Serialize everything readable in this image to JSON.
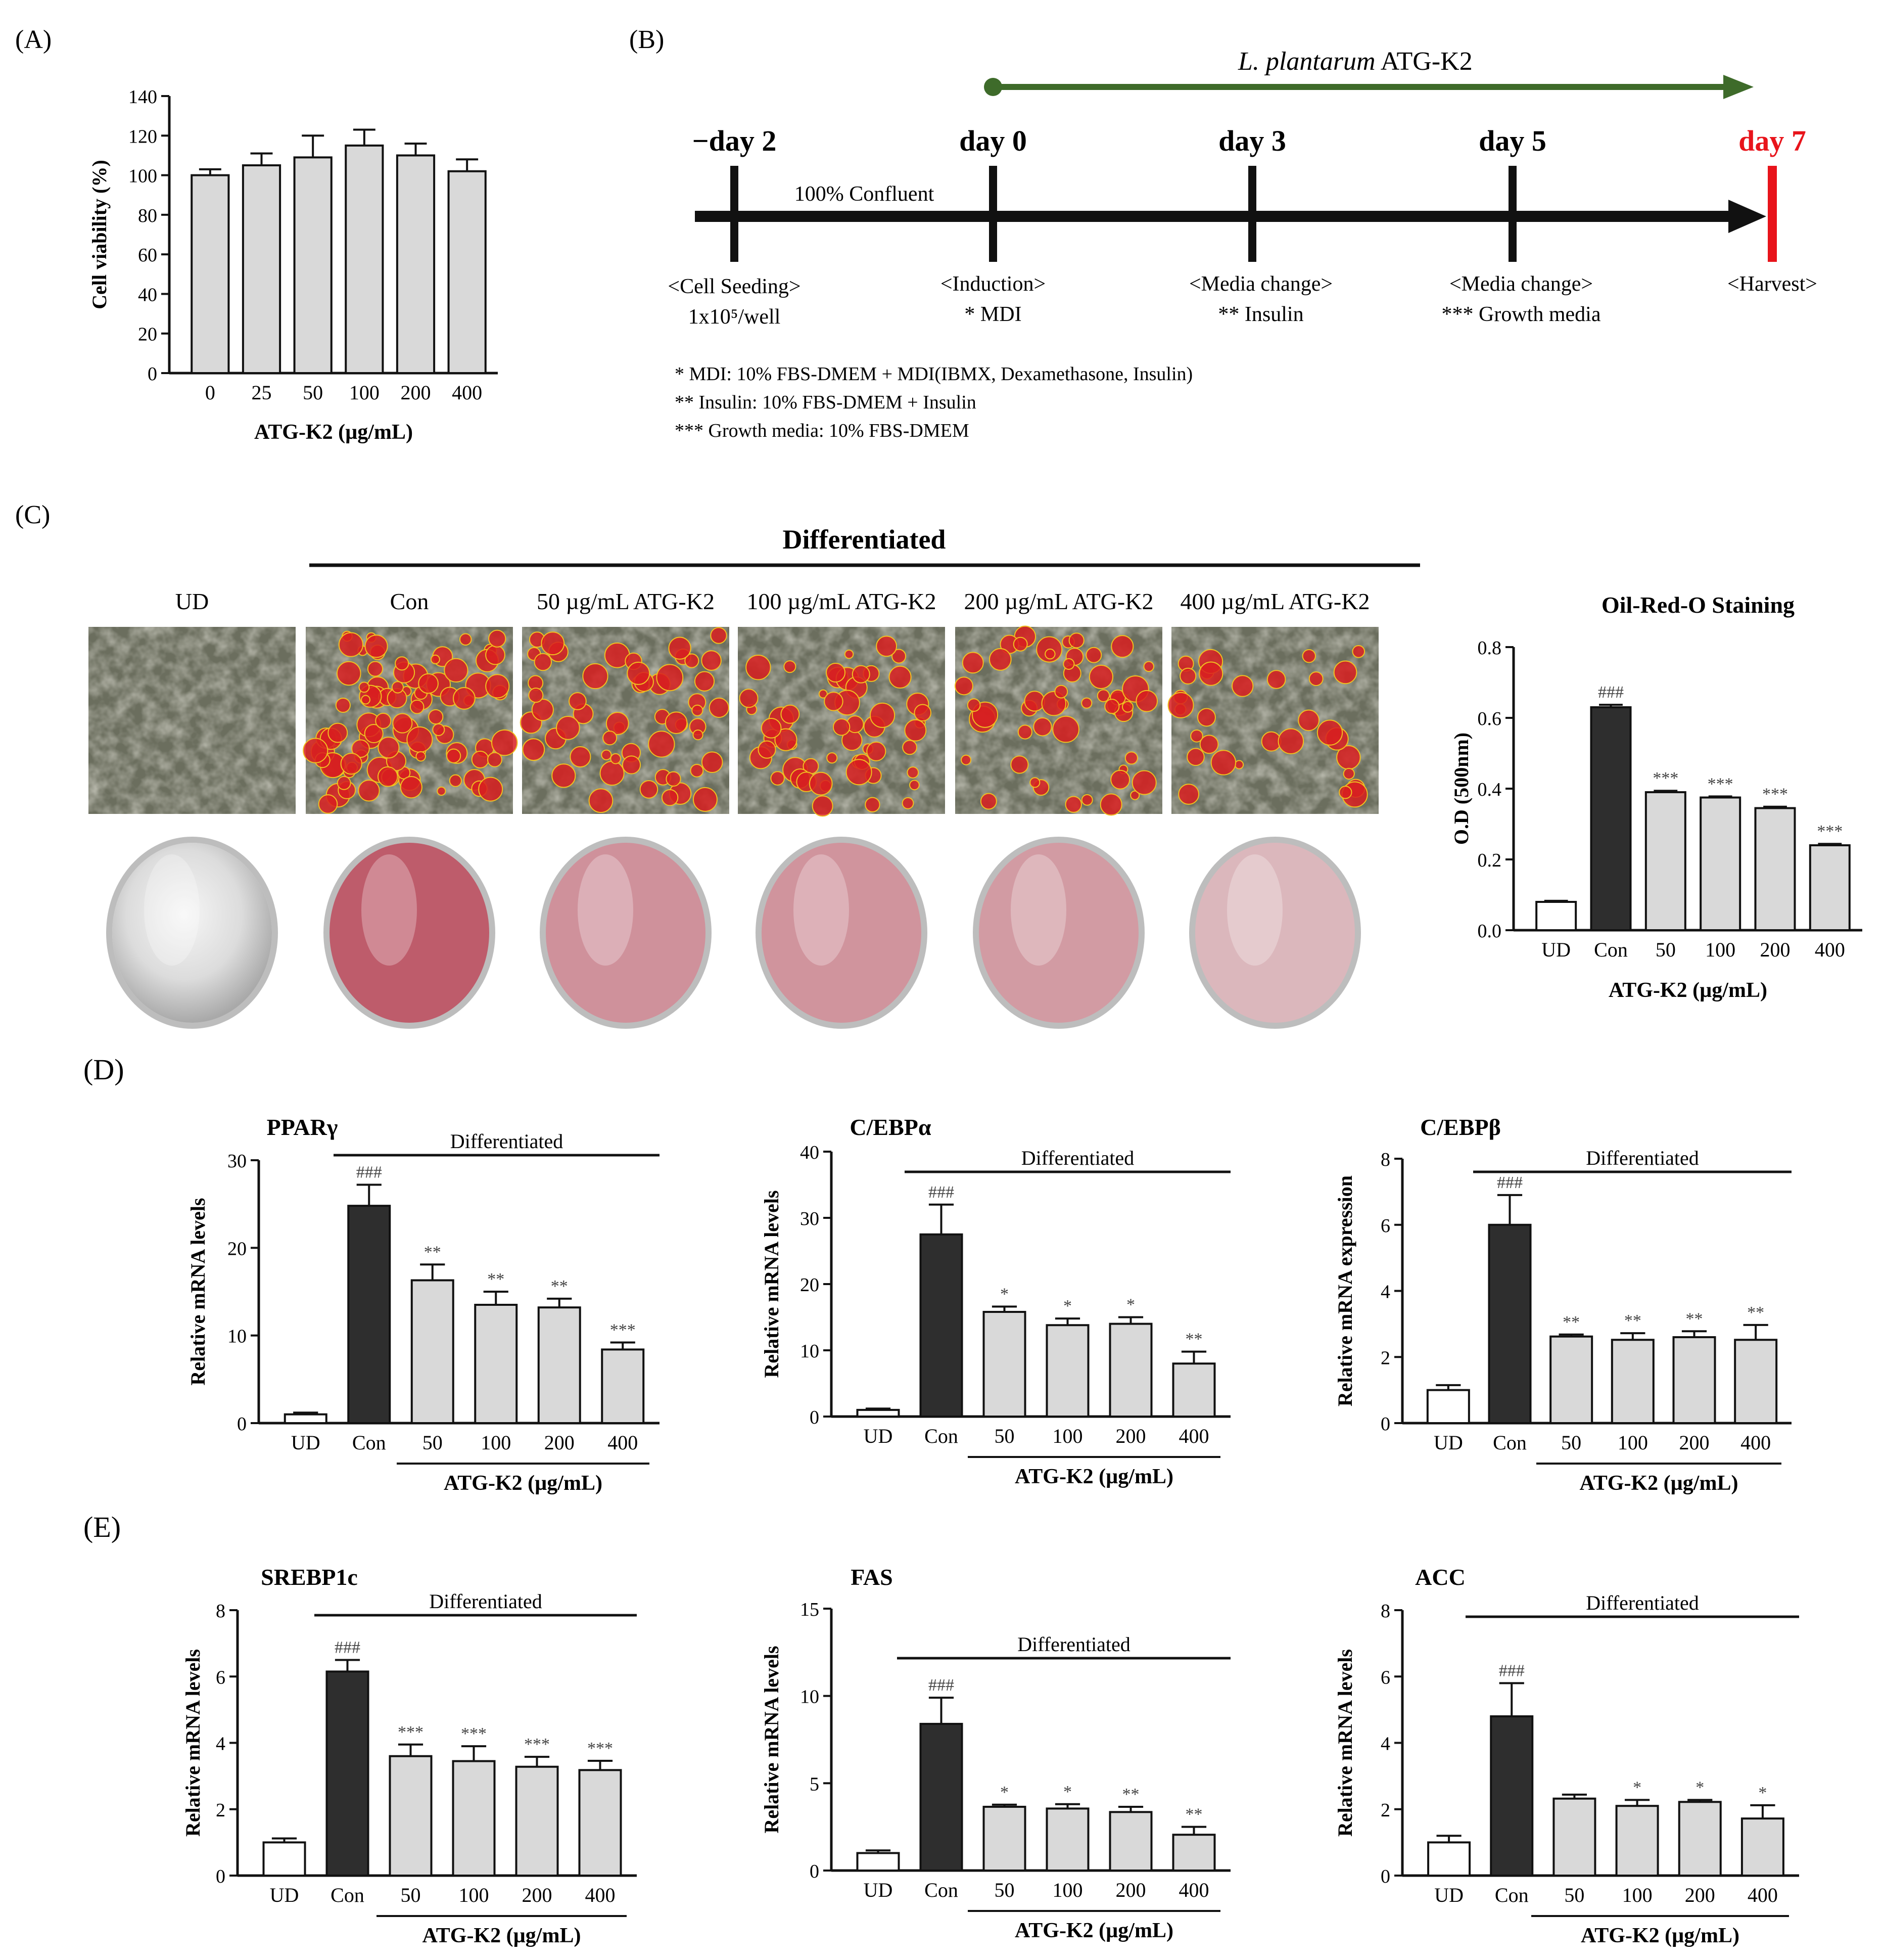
{
  "colors": {
    "con": "#2e2e2e",
    "treat": "#d9d9d9",
    "ud": "#ffffff",
    "timeline": "#111111",
    "green": "#3e6b2a",
    "red": "#e8141b",
    "stain_red": "#d81e20"
  },
  "panel_labels": {
    "a": "(A)",
    "b": "(B)",
    "c": "(C)",
    "d": "(D)",
    "e": "(E)"
  },
  "timeline": {
    "treatment_label": "L. plantarum",
    "treatment_suffix": "ATG-K2",
    "days": [
      "−day 2",
      "day 0",
      "day 3",
      "day 5",
      "day 7"
    ],
    "confluent": "100% Confluent",
    "events": [
      [
        "<Cell Seeding>",
        "1x10⁵/well"
      ],
      [
        "<Induction>",
        "* MDI"
      ],
      [
        "<Media change>",
        "** Insulin"
      ],
      [
        "<Media change>",
        "*** Growth media"
      ],
      [
        "<Harvest>",
        ""
      ]
    ],
    "notes": [
      "* MDI: 10% FBS-DMEM + MDI(IBMX,  Dexamethasone,  Insulin)",
      "** Insulin: 10% FBS-DMEM + Insulin",
      "*** Growth media: 10% FBS-DMEM"
    ]
  },
  "panel_c": {
    "header": "Differentiated",
    "image_labels": [
      "UD",
      "Con",
      "50 µg/mL  ATG-K2",
      "100 µg/mL  ATG-K2",
      "200 µg/mL  ATG-K2",
      "400 µg/mL  ATG-K2"
    ],
    "stain_level": [
      0.0,
      1.0,
      0.62,
      0.6,
      0.55,
      0.35
    ]
  },
  "chart_data": [
    {
      "id": "viability",
      "type": "bar",
      "title": "",
      "categories": [
        "0",
        "25",
        "50",
        "100",
        "200",
        "400"
      ],
      "values": [
        100,
        105,
        109,
        115,
        110,
        102
      ],
      "errors": [
        3,
        6,
        11,
        8,
        6,
        6
      ],
      "ylabel": "Cell viability (%)",
      "xlabel": "ATG-K2 (µg/mL)",
      "ylim": [
        0,
        140
      ],
      "yticks": [
        0,
        20,
        40,
        60,
        80,
        100,
        120,
        140
      ],
      "sig": [
        "",
        "",
        "",
        "",
        "",
        ""
      ],
      "style": "treat"
    },
    {
      "id": "oro",
      "type": "bar",
      "title": "Oil-Red-O Staining",
      "categories": [
        "UD",
        "Con",
        "50",
        "100",
        "200",
        "400"
      ],
      "values": [
        0.08,
        0.63,
        0.39,
        0.375,
        0.345,
        0.24
      ],
      "errors": [
        0.003,
        0.007,
        0.004,
        0.003,
        0.004,
        0.004
      ],
      "ylabel": "O.D (500nm)",
      "xlabel": "ATG-K2 (µg/mL)",
      "ylim": [
        0,
        0.8
      ],
      "yticks": [
        "0.0",
        "0.2",
        "0.4",
        "0.6",
        "0.8"
      ],
      "sig": [
        "",
        "###",
        "***",
        "***",
        "***",
        "***"
      ],
      "style": "group"
    },
    {
      "id": "ppar",
      "type": "bar",
      "title": "PPARγ",
      "categories": [
        "UD",
        "Con",
        "50",
        "100",
        "200",
        "400"
      ],
      "values": [
        1,
        24.8,
        16.3,
        13.5,
        13.2,
        8.4
      ],
      "errors": [
        0.2,
        2.4,
        1.8,
        1.5,
        1.0,
        0.8
      ],
      "ylabel": "Relative mRNA levels",
      "xlabel": "ATG-K2 (µg/mL)",
      "bracket": "Differentiated",
      "ylim": [
        0,
        30
      ],
      "yticks": [
        0,
        10,
        20,
        30
      ],
      "sig": [
        "",
        "###",
        "**",
        "**",
        "**",
        "***"
      ],
      "style": "group"
    },
    {
      "id": "cebpa",
      "type": "bar",
      "title": "C/EBPα",
      "categories": [
        "UD",
        "Con",
        "50",
        "100",
        "200",
        "400"
      ],
      "values": [
        1,
        27.5,
        15.8,
        13.8,
        14.0,
        8.0
      ],
      "errors": [
        0.2,
        4.5,
        0.8,
        1.0,
        1.0,
        1.8
      ],
      "ylabel": "Relative mRNA levels",
      "xlabel": "ATG-K2 (µg/mL)",
      "bracket": "Differentiated",
      "ylim": [
        0,
        40
      ],
      "yticks": [
        0,
        10,
        20,
        30,
        40
      ],
      "sig": [
        "",
        "###",
        "*",
        "*",
        "*",
        "**"
      ],
      "style": "group"
    },
    {
      "id": "cebpb",
      "type": "bar",
      "title": "C/EBPβ",
      "categories": [
        "UD",
        "Con",
        "50",
        "100",
        "200",
        "400"
      ],
      "values": [
        1,
        6.0,
        2.62,
        2.52,
        2.6,
        2.52
      ],
      "errors": [
        0.15,
        0.9,
        0.06,
        0.2,
        0.18,
        0.45
      ],
      "ylabel": "Relative mRNA expression",
      "xlabel": "ATG-K2 (µg/mL)",
      "bracket": "Differentiated",
      "ylim": [
        0,
        8
      ],
      "yticks": [
        0,
        2,
        4,
        6,
        8
      ],
      "sig": [
        "",
        "###",
        "**",
        "**",
        "**",
        "**"
      ],
      "style": "group"
    },
    {
      "id": "srebp",
      "type": "bar",
      "title": "SREBP1c",
      "categories": [
        "UD",
        "Con",
        "50",
        "100",
        "200",
        "400"
      ],
      "values": [
        1,
        6.15,
        3.6,
        3.45,
        3.28,
        3.18
      ],
      "errors": [
        0.12,
        0.35,
        0.35,
        0.45,
        0.3,
        0.28
      ],
      "ylabel": "Relative mRNA levels",
      "xlabel": "ATG-K2 (µg/mL)",
      "bracket": "Differentiated",
      "ylim": [
        0,
        8
      ],
      "yticks": [
        0,
        2,
        4,
        6,
        8
      ],
      "sig": [
        "",
        "###",
        "***",
        "***",
        "***",
        "***"
      ],
      "style": "group"
    },
    {
      "id": "fas",
      "type": "bar",
      "title": "FAS",
      "categories": [
        "UD",
        "Con",
        "50",
        "100",
        "200",
        "400"
      ],
      "values": [
        1,
        8.4,
        3.65,
        3.55,
        3.35,
        2.05
      ],
      "errors": [
        0.15,
        1.5,
        0.12,
        0.25,
        0.3,
        0.45
      ],
      "ylabel": "Relative mRNA levels",
      "xlabel": "ATG-K2 (µg/mL)",
      "bracket": "Differentiated",
      "ylim": [
        0,
        15
      ],
      "yticks": [
        0,
        5,
        10,
        15
      ],
      "sig": [
        "",
        "###",
        "*",
        "*",
        "**",
        "**"
      ],
      "style": "group"
    },
    {
      "id": "acc",
      "type": "bar",
      "title": "ACC",
      "categories": [
        "UD",
        "Con",
        "50",
        "100",
        "200",
        "400"
      ],
      "values": [
        1,
        4.8,
        2.32,
        2.1,
        2.22,
        1.72
      ],
      "errors": [
        0.2,
        1.0,
        0.12,
        0.18,
        0.06,
        0.4
      ],
      "ylabel": "Relative mRNA levels",
      "xlabel": "ATG-K2 (µg/mL)",
      "bracket": "Differentiated",
      "ylim": [
        0,
        8
      ],
      "yticks": [
        0,
        2,
        4,
        6,
        8
      ],
      "sig": [
        "",
        "###",
        "",
        "*",
        "*",
        "*"
      ],
      "style": "group"
    }
  ]
}
